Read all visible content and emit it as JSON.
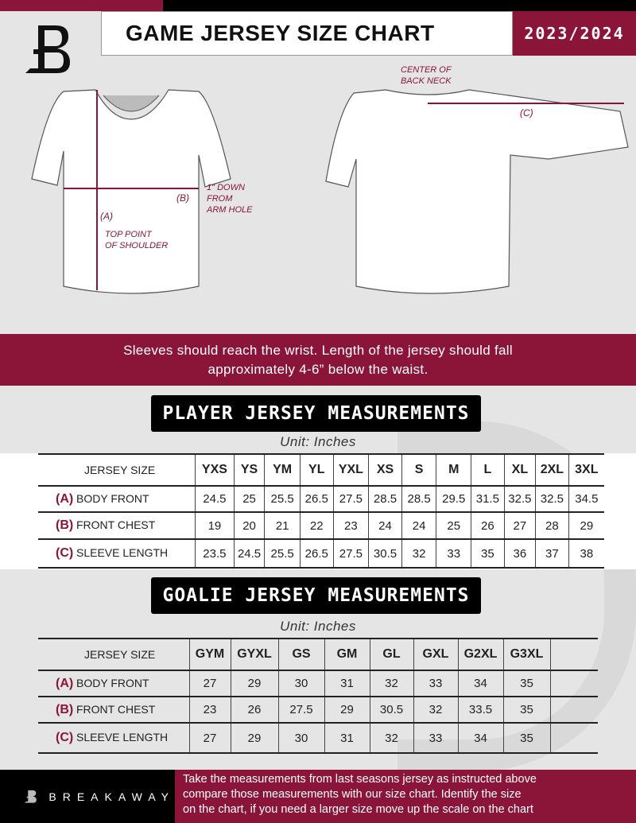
{
  "header": {
    "title": "GAME JERSEY SIZE CHART",
    "season": "2023/2024",
    "logo_letter": "B"
  },
  "colors": {
    "accent": "#8a1538",
    "dark": "#000000",
    "background": "#e5e5e6"
  },
  "diagram": {
    "center_back_neck": [
      "CENTER OF",
      "BACK NECK"
    ],
    "label_a": "(A)",
    "label_b": "(B)",
    "label_c": "(C)",
    "chest_note": [
      "1\" DOWN",
      "FROM",
      "ARM HOLE"
    ],
    "shoulder_note": [
      "TOP POINT",
      "OF SHOULDER"
    ]
  },
  "band": {
    "line1": "Sleeves should reach the wrist. Length of the jersey should fall",
    "line2": "approximately 4-6” below the waist."
  },
  "player": {
    "title": "PLAYER JERSEY MEASUREMENTS",
    "unit": "Unit: Inches",
    "size_label": "JERSEY SIZE",
    "sizes": [
      "YXS",
      "YS",
      "YM",
      "YL",
      "YXL",
      "XS",
      "S",
      "M",
      "L",
      "XL",
      "2XL",
      "3XL"
    ],
    "rows": [
      {
        "letter": "(A)",
        "label": "BODY FRONT",
        "values": [
          "24.5",
          "25",
          "25.5",
          "26.5",
          "27.5",
          "28.5",
          "28.5",
          "29.5",
          "31.5",
          "32.5",
          "32.5",
          "34.5"
        ]
      },
      {
        "letter": "(B)",
        "label": "FRONT CHEST",
        "values": [
          "19",
          "20",
          "21",
          "22",
          "23",
          "24",
          "24",
          "25",
          "26",
          "27",
          "28",
          "29"
        ]
      },
      {
        "letter": "(C)",
        "label": "SLEEVE LENGTH",
        "values": [
          "23.5",
          "24.5",
          "25.5",
          "26.5",
          "27.5",
          "30.5",
          "32",
          "33",
          "35",
          "36",
          "37",
          "38"
        ]
      }
    ]
  },
  "goalie": {
    "title": "GOALIE JERSEY MEASUREMENTS",
    "unit": "Unit: Inches",
    "size_label": "JERSEY SIZE",
    "sizes": [
      "GYM",
      "GYXL",
      "GS",
      "GM",
      "GL",
      "GXL",
      "G2XL",
      "G3XL",
      ""
    ],
    "rows": [
      {
        "letter": "(A)",
        "label": "BODY FRONT",
        "values": [
          "27",
          "29",
          "30",
          "31",
          "32",
          "33",
          "34",
          "35",
          ""
        ]
      },
      {
        "letter": "(B)",
        "label": "FRONT CHEST",
        "values": [
          "23",
          "26",
          "27.5",
          "29",
          "30.5",
          "32",
          "33.5",
          "35",
          ""
        ]
      },
      {
        "letter": "(C)",
        "label": "SLEEVE LENGTH",
        "values": [
          "27",
          "29",
          "30",
          "31",
          "32",
          "33",
          "34",
          "35",
          ""
        ]
      }
    ]
  },
  "footer": {
    "brand": "BREAKAWAY",
    "lines": [
      "Take the measurements from last seasons jersey as instructed above",
      "compare those measurements  with our size chart. Identify the size",
      "on the chart, if you need a larger size move up the scale on the chart"
    ]
  }
}
